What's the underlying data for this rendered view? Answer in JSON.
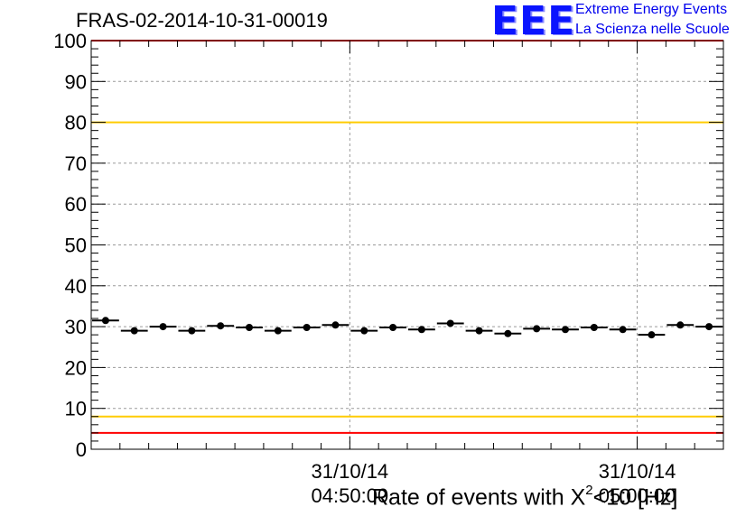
{
  "chart_data": {
    "type": "scatter",
    "title": "FRAS-02-2014-10-31-00019",
    "xlabel_prefix": "Rate of events with ",
    "xlabel_chi": "X",
    "xlabel_sup": "2",
    "xlabel_suffix": "<10 [Hz]",
    "ylabel": "",
    "ylim": [
      0,
      100
    ],
    "yticks": [
      "0",
      "10",
      "20",
      "30",
      "40",
      "50",
      "60",
      "70",
      "80",
      "90",
      "100"
    ],
    "xticks": [
      {
        "date": "31/10/14",
        "time": "04:50:00",
        "index": 9
      },
      {
        "date": "31/10/14",
        "time": "05:00:00",
        "index": 19
      }
    ],
    "grid": true,
    "reference_lines": [
      {
        "value": 4,
        "color": "#ff0000"
      },
      {
        "value": 8,
        "color": "#ffcc00"
      },
      {
        "value": 80,
        "color": "#ffcc00"
      },
      {
        "value": 100,
        "color": "#ff0000"
      }
    ],
    "series": [
      {
        "name": "rate",
        "color": "#000000",
        "values": [
          31.5,
          29.0,
          30.0,
          29.0,
          30.2,
          29.8,
          29.0,
          29.8,
          30.4,
          29.0,
          29.8,
          29.3,
          30.8,
          29.0,
          28.3,
          29.5,
          29.3,
          29.8,
          29.3,
          28.0,
          30.4,
          30.0
        ]
      }
    ]
  },
  "logo": {
    "mark": "EEE",
    "line1": "Extreme Energy Events",
    "line2": "La Scienza nelle Scuole"
  }
}
